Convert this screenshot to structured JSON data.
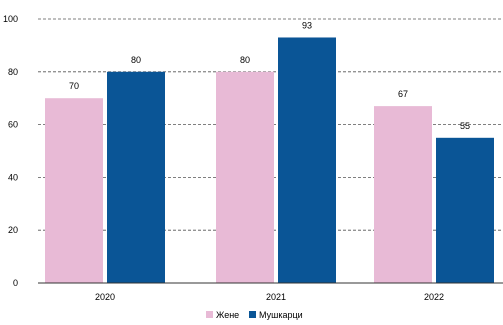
{
  "chart_data": {
    "type": "bar",
    "categories": [
      "2020",
      "2021",
      "2022"
    ],
    "series": [
      {
        "name": "Жене",
        "values": [
          70,
          80,
          67
        ],
        "color": "#e8bad6"
      },
      {
        "name": "Мушкарци",
        "values": [
          80,
          93,
          55
        ],
        "color": "#0a5596"
      }
    ],
    "ylim": [
      0,
      100
    ],
    "yticks": [
      0,
      20,
      40,
      60,
      80,
      100
    ],
    "grid": true,
    "legend_position": "bottom-center",
    "title": "",
    "xlabel": "",
    "ylabel": ""
  }
}
